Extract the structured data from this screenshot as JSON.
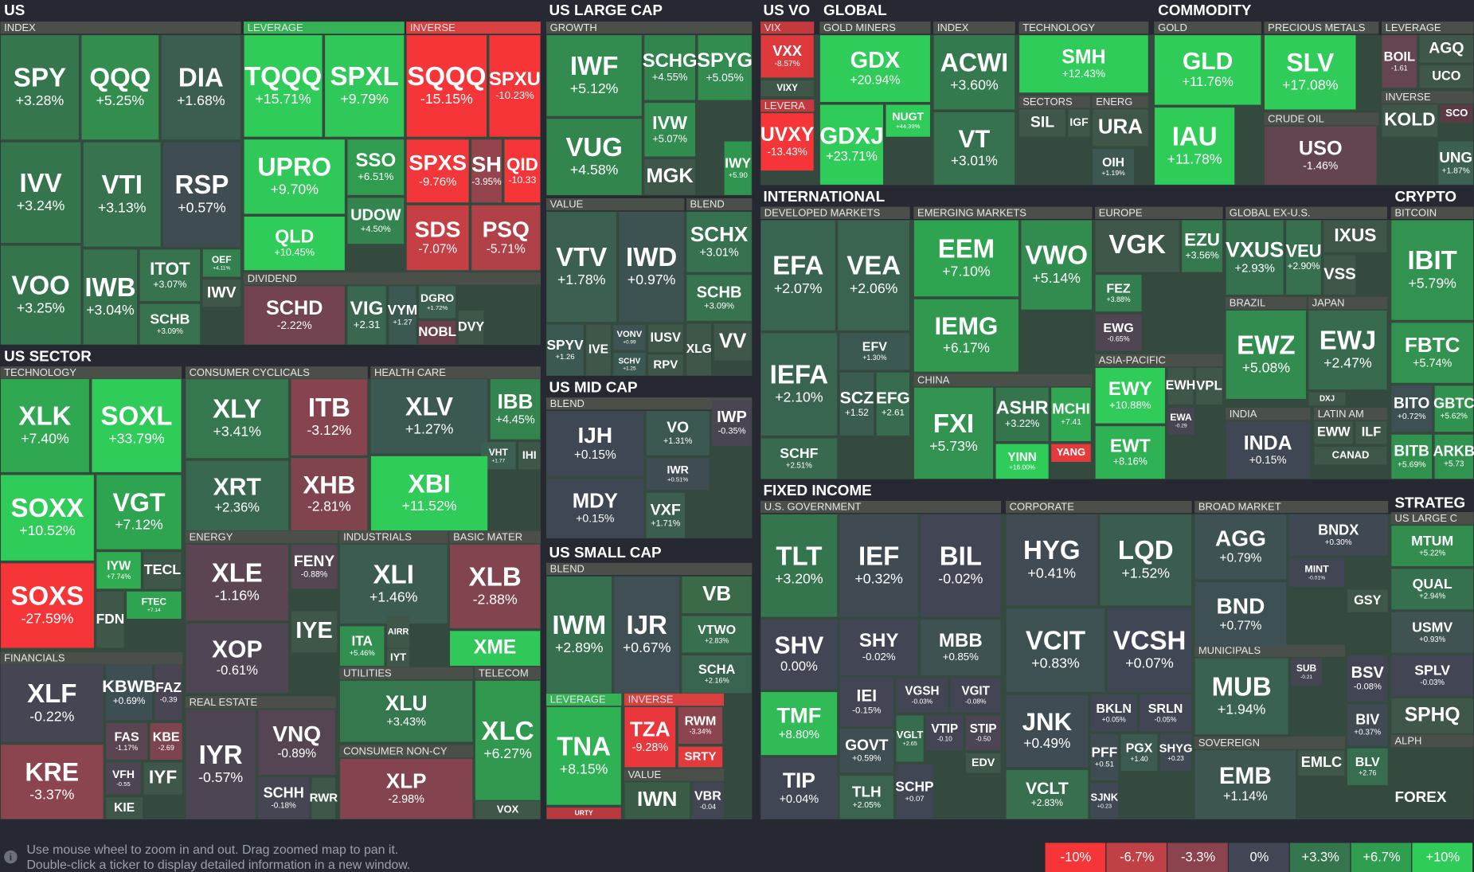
{
  "headers": [
    "US",
    "US LARGE CAP",
    "US VO",
    "GLOBAL",
    "COMMODITY",
    "US SECTOR",
    "US MID CAP",
    "US SMALL CAP",
    "INTERNATIONAL",
    "CRYPTO",
    "FIXED INCOME",
    "STRATEG",
    "FOREX"
  ],
  "subheaders": [
    "INDEX",
    "LEVERAGE",
    "INVERSE",
    "DIVIDEND",
    "GROWTH",
    "VALUE",
    "BLEND",
    "BLEND",
    "BLEND",
    "LEVERAGE",
    "INVERSE",
    "VALUE",
    "VIX",
    "LEVERA",
    "GOLD MINERS",
    "INDEX",
    "TECHNOLOGY",
    "SECTORS",
    "ENERG",
    "GOLD",
    "PRECIOUS METALS",
    "LEVERAGE",
    "INVERSE",
    "CRUDE OIL",
    "TECHNOLOGY",
    "CONSUMER CYCLICALS",
    "HEALTH CARE",
    "ENERGY",
    "INDUSTRIALS",
    "BASIC MATER",
    "FINANCIALS",
    "UTILITIES",
    "TELECOM",
    "REAL ESTATE",
    "CONSUMER NON-CY",
    "DEVELOPED MARKETS",
    "EMERGING MARKETS",
    "EUROPE",
    "GLOBAL EX-U.S.",
    "BRAZIL",
    "JAPAN",
    "ASIA-PACIFIC",
    "CHINA",
    "INDIA",
    "LATIN AM",
    "BITCOIN",
    "U.S. GOVERNMENT",
    "CORPORATE",
    "BROAD MARKET",
    "MUNICIPALS",
    "SOVEREIGN",
    "US LARGE C",
    "ALPH"
  ],
  "tiles": [
    {
      "ticker": "SPY",
      "change": "+3.28%"
    },
    {
      "ticker": "QQQ",
      "change": "+5.25%"
    },
    {
      "ticker": "DIA",
      "change": "+1.68%"
    },
    {
      "ticker": "IVV",
      "change": "+3.24%"
    },
    {
      "ticker": "VTI",
      "change": "+3.13%"
    },
    {
      "ticker": "RSP",
      "change": "+0.57%"
    },
    {
      "ticker": "VOO",
      "change": "+3.25%"
    },
    {
      "ticker": "IWB",
      "change": "+3.04%"
    },
    {
      "ticker": "ITOT",
      "change": "+3.07%"
    },
    {
      "ticker": "OEF",
      "change": "+4.11%"
    },
    {
      "ticker": "IWV"
    },
    {
      "ticker": "SCHB",
      "change": "+3.09%"
    },
    {
      "ticker": "TQQQ",
      "change": "+15.71%"
    },
    {
      "ticker": "SPXL",
      "change": "+9.79%"
    },
    {
      "ticker": "UPRO",
      "change": "+9.70%"
    },
    {
      "ticker": "SSO",
      "change": "+6.51%"
    },
    {
      "ticker": "QLD",
      "change": "+10.45%"
    },
    {
      "ticker": "UDOW",
      "change": "+4.50%"
    },
    {
      "ticker": "SQQQ",
      "change": "-15.15%"
    },
    {
      "ticker": "SPXU",
      "change": "-10.23%"
    },
    {
      "ticker": "SPXS",
      "change": "-9.76%"
    },
    {
      "ticker": "SH",
      "change": "-3.95%"
    },
    {
      "ticker": "QID",
      "change": "-10.33"
    },
    {
      "ticker": "SDS",
      "change": "-7.07%"
    },
    {
      "ticker": "PSQ",
      "change": "-5.71%"
    },
    {
      "ticker": "SCHD",
      "change": "-2.22%"
    },
    {
      "ticker": "VIG",
      "change": "+2.31"
    },
    {
      "ticker": "VYM",
      "change": "+1.27"
    },
    {
      "ticker": "DGRO",
      "change": "+1.72%"
    },
    {
      "ticker": "NOBL"
    },
    {
      "ticker": "DVY"
    },
    {
      "ticker": "IWF",
      "change": "+5.12%"
    },
    {
      "ticker": "SCHG",
      "change": "+4.55%"
    },
    {
      "ticker": "SPYG",
      "change": "+5.05%"
    },
    {
      "ticker": "VUG",
      "change": "+4.58%"
    },
    {
      "ticker": "IVW",
      "change": "+5.07%"
    },
    {
      "ticker": "MGK"
    },
    {
      "ticker": "IWY",
      "change": "+5.90"
    },
    {
      "ticker": "VTV",
      "change": "+1.78%"
    },
    {
      "ticker": "IWD",
      "change": "+0.97%"
    },
    {
      "ticker": "SPYV",
      "change": "+1.26"
    },
    {
      "ticker": "IVE"
    },
    {
      "ticker": "VONV",
      "change": "+0.99"
    },
    {
      "ticker": "IUSV"
    },
    {
      "ticker": "SCHV",
      "change": "+1.25"
    },
    {
      "ticker": "RPV"
    },
    {
      "ticker": "SCHX",
      "change": "+3.01%"
    },
    {
      "ticker": "SCHB",
      "change": "+3.09%"
    },
    {
      "ticker": "XLG"
    },
    {
      "ticker": "VV"
    },
    {
      "ticker": "IJH",
      "change": "+0.15%"
    },
    {
      "ticker": "VO",
      "change": "+1.31%"
    },
    {
      "ticker": "IWP",
      "change": "-0.35%"
    },
    {
      "ticker": "MDY",
      "change": "+0.15%"
    },
    {
      "ticker": "IWR",
      "change": "+0.51%"
    },
    {
      "ticker": "VXF",
      "change": "+1.71%"
    },
    {
      "ticker": "IWM",
      "change": "+2.89%"
    },
    {
      "ticker": "IJR",
      "change": "+0.67%"
    },
    {
      "ticker": "VB"
    },
    {
      "ticker": "VTWO",
      "change": "+2.83%"
    },
    {
      "ticker": "SCHA",
      "change": "+2.16%"
    },
    {
      "ticker": "TNA",
      "change": "+8.15%"
    },
    {
      "ticker": "URTY"
    },
    {
      "ticker": "TZA",
      "change": "-9.28%"
    },
    {
      "ticker": "RWM",
      "change": "-3.34%"
    },
    {
      "ticker": "SRTY"
    },
    {
      "ticker": "IWN"
    },
    {
      "ticker": "VBR",
      "change": "-0.04"
    },
    {
      "ticker": "VXX",
      "change": "-8.57%"
    },
    {
      "ticker": "VIXY"
    },
    {
      "ticker": "UVXY",
      "change": "-13.43%"
    },
    {
      "ticker": "GDX",
      "change": "+20.94%"
    },
    {
      "ticker": "GDXJ",
      "change": "+23.71%"
    },
    {
      "ticker": "NUGT",
      "change": "+44.39%"
    },
    {
      "ticker": "ACWI",
      "change": "+3.60%"
    },
    {
      "ticker": "VT",
      "change": "+3.01%"
    },
    {
      "ticker": "SMH",
      "change": "+12.43%"
    },
    {
      "ticker": "SIL"
    },
    {
      "ticker": "IGF"
    },
    {
      "ticker": "URA"
    },
    {
      "ticker": "OIH",
      "change": "+1.19%"
    },
    {
      "ticker": "GLD",
      "change": "+11.76%"
    },
    {
      "ticker": "IAU",
      "change": "+11.78%"
    },
    {
      "ticker": "SLV",
      "change": "+17.08%"
    },
    {
      "ticker": "USO",
      "change": "-1.46%"
    },
    {
      "ticker": "BOIL",
      "change": "-1.61"
    },
    {
      "ticker": "AGQ"
    },
    {
      "ticker": "UCO"
    },
    {
      "ticker": "KOLD"
    },
    {
      "ticker": "SCO"
    },
    {
      "ticker": "UNG",
      "change": "+1.87%"
    },
    {
      "ticker": "EFA",
      "change": "+2.07%"
    },
    {
      "ticker": "VEA",
      "change": "+2.06%"
    },
    {
      "ticker": "IEFA",
      "change": "+2.10%"
    },
    {
      "ticker": "EFV",
      "change": "+1.30%"
    },
    {
      "ticker": "SCZ",
      "change": "+1.52"
    },
    {
      "ticker": "EFG",
      "change": "+2.61"
    },
    {
      "ticker": "SCHF",
      "change": "+2.51%"
    },
    {
      "ticker": "EEM",
      "change": "+7.10%"
    },
    {
      "ticker": "VWO",
      "change": "+5.14%"
    },
    {
      "ticker": "IEMG",
      "change": "+6.17%"
    },
    {
      "ticker": "FXI",
      "change": "+5.73%"
    },
    {
      "ticker": "ASHR",
      "change": "+3.22%"
    },
    {
      "ticker": "MCHI",
      "change": "+7.41"
    },
    {
      "ticker": "YINN",
      "change": "+16.00%"
    },
    {
      "ticker": "YANG"
    },
    {
      "ticker": "VGK"
    },
    {
      "ticker": "EZU",
      "change": "+3.56%"
    },
    {
      "ticker": "FEZ",
      "change": "+3.88%"
    },
    {
      "ticker": "EWG",
      "change": "-0.65%"
    },
    {
      "ticker": "EWY",
      "change": "+10.88%"
    },
    {
      "ticker": "EWH"
    },
    {
      "ticker": "VPL"
    },
    {
      "ticker": "EWA",
      "change": "-0.29"
    },
    {
      "ticker": "EWT",
      "change": "+8.16%"
    },
    {
      "ticker": "VXUS",
      "change": "+2.93%"
    },
    {
      "ticker": "VEU",
      "change": "+2.90%"
    },
    {
      "ticker": "IXUS"
    },
    {
      "ticker": "VSS"
    },
    {
      "ticker": "EWZ",
      "change": "+5.08%"
    },
    {
      "ticker": "EWJ",
      "change": "+2.47%"
    },
    {
      "ticker": "DXJ"
    },
    {
      "ticker": "INDA",
      "change": "+0.15%"
    },
    {
      "ticker": "EWW"
    },
    {
      "ticker": "ILF"
    },
    {
      "ticker": "CANAD"
    },
    {
      "ticker": "IBIT",
      "change": "+5.79%"
    },
    {
      "ticker": "FBTC",
      "change": "+5.74%"
    },
    {
      "ticker": "BITO",
      "change": "+0.72%"
    },
    {
      "ticker": "GBTC",
      "change": "+5.62%"
    },
    {
      "ticker": "BITB",
      "change": "+5.69%"
    },
    {
      "ticker": "ARKB",
      "change": "+5.73"
    },
    {
      "ticker": "TLT",
      "change": "+3.20%"
    },
    {
      "ticker": "IEF",
      "change": "+0.32%"
    },
    {
      "ticker": "BIL",
      "change": "-0.02%"
    },
    {
      "ticker": "SHV",
      "change": "0.00%"
    },
    {
      "ticker": "SHY",
      "change": "-0.02%"
    },
    {
      "ticker": "MBB",
      "change": "+0.85%"
    },
    {
      "ticker": "TMF",
      "change": "+8.80%"
    },
    {
      "ticker": "TIP",
      "change": "+0.04%"
    },
    {
      "ticker": "IEI",
      "change": "-0.15%"
    },
    {
      "ticker": "VGSH",
      "change": "-0.03%"
    },
    {
      "ticker": "VGIT",
      "change": "-0.08%"
    },
    {
      "ticker": "GOVT",
      "change": "+0.59%"
    },
    {
      "ticker": "VGLT",
      "change": "+2.65"
    },
    {
      "ticker": "VTIP",
      "change": "-0.10"
    },
    {
      "ticker": "STIP",
      "change": "-0.50"
    },
    {
      "ticker": "EDV"
    },
    {
      "ticker": "TLH",
      "change": "+2.05%"
    },
    {
      "ticker": "SCHP",
      "change": "+0.07"
    },
    {
      "ticker": "HYG",
      "change": "+0.41%"
    },
    {
      "ticker": "LQD",
      "change": "+1.52%"
    },
    {
      "ticker": "VCIT",
      "change": "+0.83%"
    },
    {
      "ticker": "VCSH",
      "change": "+0.07%"
    },
    {
      "ticker": "JNK",
      "change": "+0.49%"
    },
    {
      "ticker": "VCLT",
      "change": "+2.83%"
    },
    {
      "ticker": "BKLN",
      "change": "+0.05%"
    },
    {
      "ticker": "SRLN",
      "change": "-0.05%"
    },
    {
      "ticker": "PFF",
      "change": "+0.51"
    },
    {
      "ticker": "PGX",
      "change": "+1.40"
    },
    {
      "ticker": "SHYG",
      "change": "+0.23"
    },
    {
      "ticker": "SJNK",
      "change": "+0.23"
    },
    {
      "ticker": "AGG",
      "change": "+0.79%"
    },
    {
      "ticker": "BND",
      "change": "+0.77%"
    },
    {
      "ticker": "BNDX",
      "change": "+0.30%"
    },
    {
      "ticker": "MINT",
      "change": "-0.01%"
    },
    {
      "ticker": "GSY"
    },
    {
      "ticker": "MUB",
      "change": "+1.94%"
    },
    {
      "ticker": "SUB",
      "change": "-0.21"
    },
    {
      "ticker": "EMB",
      "change": "+1.14%"
    },
    {
      "ticker": "EMLC"
    },
    {
      "ticker": "BSV",
      "change": "-0.08%"
    },
    {
      "ticker": "BIV",
      "change": "+0.37%"
    },
    {
      "ticker": "BLV",
      "change": "+2.76"
    },
    {
      "ticker": "MTUM",
      "change": "+5.22%"
    },
    {
      "ticker": "QUAL",
      "change": "+2.94%"
    },
    {
      "ticker": "USMV",
      "change": "+0.93%"
    },
    {
      "ticker": "SPLV",
      "change": "-0.03%"
    },
    {
      "ticker": "SPHQ"
    },
    {
      "ticker": "XLK",
      "change": "+7.40%"
    },
    {
      "ticker": "SOXL",
      "change": "+33.79%"
    },
    {
      "ticker": "SOXX",
      "change": "+10.52%"
    },
    {
      "ticker": "VGT",
      "change": "+7.12%"
    },
    {
      "ticker": "SOXS",
      "change": "-27.59%"
    },
    {
      "ticker": "IYW",
      "change": "+7.74%"
    },
    {
      "ticker": "TECL"
    },
    {
      "ticker": "FTEC",
      "change": "+7.14"
    },
    {
      "ticker": "FDN"
    },
    {
      "ticker": "XLF",
      "change": "-0.22%"
    },
    {
      "ticker": "KBWB",
      "change": "+0.69%"
    },
    {
      "ticker": "FAZ",
      "change": "-0.39"
    },
    {
      "ticker": "KRE",
      "change": "-3.37%"
    },
    {
      "ticker": "FAS",
      "change": "-1.17%"
    },
    {
      "ticker": "KBE",
      "change": "-2.69"
    },
    {
      "ticker": "VFH",
      "change": "-0.55"
    },
    {
      "ticker": "IYF"
    },
    {
      "ticker": "KIE"
    },
    {
      "ticker": "XLY",
      "change": "+3.41%"
    },
    {
      "ticker": "ITB",
      "change": "-3.12%"
    },
    {
      "ticker": "XRT",
      "change": "+2.36%"
    },
    {
      "ticker": "XHB",
      "change": "-2.81%"
    },
    {
      "ticker": "XLV",
      "change": "+1.27%"
    },
    {
      "ticker": "IBB",
      "change": "+4.45%"
    },
    {
      "ticker": "VHT",
      "change": "+1.77"
    },
    {
      "ticker": "IHI"
    },
    {
      "ticker": "XBI",
      "change": "+11.52%"
    },
    {
      "ticker": "XLE",
      "change": "-1.16%"
    },
    {
      "ticker": "FENY",
      "change": "-0.88%"
    },
    {
      "ticker": "XOP",
      "change": "-0.61%"
    },
    {
      "ticker": "IYE"
    },
    {
      "ticker": "XLI",
      "change": "+1.46%"
    },
    {
      "ticker": "ITA",
      "change": "+5.46%"
    },
    {
      "ticker": "AIRR"
    },
    {
      "ticker": "IYT"
    },
    {
      "ticker": "XLB",
      "change": "-2.88%"
    },
    {
      "ticker": "XME"
    },
    {
      "ticker": "XLU",
      "change": "+3.43%"
    },
    {
      "ticker": "XLC",
      "change": "+6.27%"
    },
    {
      "ticker": "VOX"
    },
    {
      "ticker": "IYR",
      "change": "-0.57%"
    },
    {
      "ticker": "VNQ",
      "change": "-0.89%"
    },
    {
      "ticker": "SCHH",
      "change": "-0.18%"
    },
    {
      "ticker": "RWR"
    },
    {
      "ticker": "XLP",
      "change": "-2.98%"
    }
  ],
  "footer": [
    "Use mouse wheel to zoom in and out. Drag zoomed map to pan it.",
    "Double-click a ticker to display detailed information in a new window."
  ],
  "legend": [
    {
      "label": "-10%",
      "color": "#f63538"
    },
    {
      "label": "-6.7%",
      "color": "#bf4045"
    },
    {
      "label": "-3.3%",
      "color": "#8b444e"
    },
    {
      "label": "0%",
      "color": "#414554"
    },
    {
      "label": "+3.3%",
      "color": "#35764e"
    },
    {
      "label": "+6.7%",
      "color": "#2f9e4f"
    },
    {
      "label": "+10%",
      "color": "#30cc5a"
    }
  ]
}
